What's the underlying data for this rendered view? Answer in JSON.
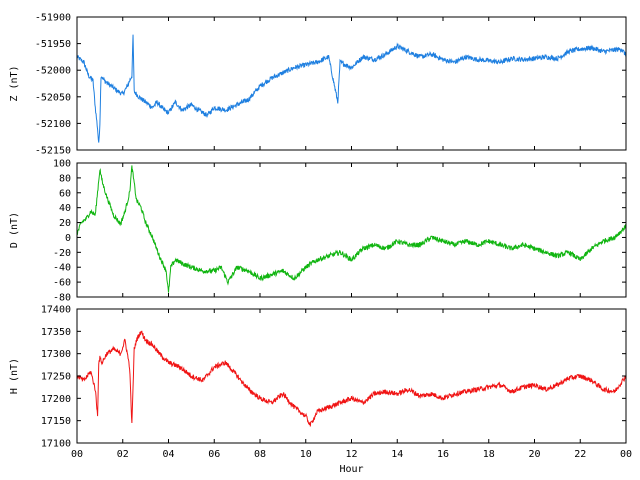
{
  "chart_data": {
    "type": "line",
    "xlabel": "Hour",
    "x_tick_labels": [
      "00",
      "02",
      "04",
      "06",
      "08",
      "10",
      "12",
      "14",
      "16",
      "18",
      "20",
      "22",
      "00"
    ],
    "xlim": [
      0,
      24
    ],
    "grid": false,
    "legend": "none",
    "panels": [
      {
        "ylabel": "Z (nT)",
        "color": "#1e7fe0",
        "ylim": [
          -52150,
          -51900
        ],
        "y_ticks": [
          -51900,
          -51950,
          -52000,
          -52050,
          -52100,
          -52150
        ],
        "series": [
          {
            "x": [
              0,
              0.3,
              0.5,
              0.7,
              0.8,
              0.9,
              0.95,
              1.0,
              1.05,
              1.2,
              1.5,
              1.8,
              2.0,
              2.2,
              2.4,
              2.45,
              2.5,
              2.7,
              3.0,
              3.3,
              3.5,
              3.8,
              4.0,
              4.3,
              4.6,
              5.0,
              5.3,
              5.7,
              6.0,
              6.5,
              7.0,
              7.5,
              8.0,
              8.5,
              9.0,
              9.5,
              10.0,
              10.5,
              11.0,
              11.4,
              11.5,
              12.0,
              12.5,
              13.0,
              13.5,
              14.0,
              14.5,
              15.0,
              15.5,
              16.0,
              16.5,
              17.0,
              17.5,
              18.0,
              18.5,
              19.0,
              19.5,
              20.0,
              20.5,
              21.0,
              21.5,
              22.0,
              22.5,
              23.0,
              23.5,
              23.8,
              24.0
            ],
            "y": [
              -51975,
              -51985,
              -52010,
              -52020,
              -52070,
              -52110,
              -52140,
              -52100,
              -52010,
              -52020,
              -52030,
              -52040,
              -52045,
              -52030,
              -52010,
              -51935,
              -52040,
              -52050,
              -52060,
              -52070,
              -52060,
              -52075,
              -52080,
              -52060,
              -52075,
              -52065,
              -52075,
              -52085,
              -52070,
              -52075,
              -52065,
              -52055,
              -52030,
              -52015,
              -52005,
              -51995,
              -51990,
              -51985,
              -51975,
              -52060,
              -51985,
              -51995,
              -51975,
              -51980,
              -51970,
              -51955,
              -51965,
              -51975,
              -51970,
              -51980,
              -51985,
              -51975,
              -51980,
              -51982,
              -51985,
              -51978,
              -51980,
              -51978,
              -51975,
              -51978,
              -51965,
              -51960,
              -51958,
              -51965,
              -51962,
              -51960,
              -51972
            ]
          }
        ]
      },
      {
        "ylabel": "D (nT)",
        "color": "#11b511",
        "ylim": [
          -80,
          100
        ],
        "y_ticks": [
          100,
          80,
          60,
          40,
          20,
          0,
          -20,
          -40,
          -60,
          -80
        ],
        "series": [
          {
            "x": [
              0,
              0.2,
              0.4,
              0.6,
              0.8,
              1.0,
              1.1,
              1.3,
              1.6,
              1.9,
              2.1,
              2.3,
              2.4,
              2.6,
              2.8,
              3.0,
              3.3,
              3.6,
              3.9,
              4.0,
              4.1,
              4.3,
              4.6,
              5.0,
              5.5,
              6.0,
              6.3,
              6.6,
              7.0,
              7.5,
              8.0,
              8.5,
              9.0,
              9.5,
              10.0,
              10.5,
              11.0,
              11.5,
              12.0,
              12.5,
              13.0,
              13.5,
              14.0,
              14.5,
              15.0,
              15.5,
              16.0,
              16.5,
              17.0,
              17.5,
              18.0,
              18.5,
              19.0,
              19.5,
              20.0,
              20.5,
              21.0,
              21.5,
              22.0,
              22.5,
              23.0,
              23.5,
              24.0
            ],
            "y": [
              5,
              20,
              25,
              35,
              30,
              92,
              75,
              55,
              30,
              18,
              35,
              60,
              95,
              50,
              40,
              20,
              0,
              -25,
              -45,
              -75,
              -40,
              -30,
              -35,
              -40,
              -45,
              -45,
              -40,
              -60,
              -40,
              -45,
              -55,
              -50,
              -45,
              -55,
              -40,
              -30,
              -25,
              -20,
              -30,
              -15,
              -10,
              -15,
              -5,
              -10,
              -10,
              0,
              -5,
              -10,
              -5,
              -10,
              -5,
              -10,
              -15,
              -10,
              -15,
              -20,
              -25,
              -20,
              -30,
              -15,
              -5,
              0,
              15
            ]
          }
        ]
      },
      {
        "ylabel": "H (nT)",
        "color": "#f01414",
        "ylim": [
          17100,
          17400
        ],
        "y_ticks": [
          17400,
          17350,
          17300,
          17250,
          17200,
          17150,
          17100
        ],
        "series": [
          {
            "x": [
              0,
              0.3,
              0.6,
              0.8,
              0.9,
              0.95,
              1.0,
              1.1,
              1.3,
              1.6,
              1.9,
              2.1,
              2.3,
              2.4,
              2.5,
              2.6,
              2.8,
              3.0,
              3.3,
              3.6,
              4.0,
              4.5,
              5.0,
              5.5,
              6.0,
              6.5,
              7.0,
              7.5,
              8.0,
              8.5,
              9.0,
              9.5,
              10.0,
              10.2,
              10.5,
              11.0,
              11.5,
              12.0,
              12.5,
              13.0,
              13.5,
              14.0,
              14.5,
              15.0,
              15.5,
              16.0,
              16.5,
              17.0,
              17.5,
              18.0,
              18.5,
              19.0,
              19.5,
              20.0,
              20.5,
              21.0,
              21.5,
              22.0,
              22.5,
              23.0,
              23.5,
              24.0
            ],
            "y": [
              17250,
              17240,
              17260,
              17220,
              17160,
              17280,
              17290,
              17280,
              17300,
              17310,
              17300,
              17330,
              17270,
              17140,
              17310,
              17330,
              17350,
              17330,
              17320,
              17300,
              17280,
              17270,
              17250,
              17240,
              17270,
              17280,
              17250,
              17220,
              17200,
              17190,
              17210,
              17180,
              17160,
              17140,
              17170,
              17180,
              17190,
              17200,
              17190,
              17210,
              17215,
              17210,
              17220,
              17205,
              17210,
              17200,
              17210,
              17215,
              17220,
              17225,
              17230,
              17215,
              17225,
              17230,
              17220,
              17230,
              17245,
              17250,
              17240,
              17220,
              17215,
              17250
            ]
          }
        ]
      }
    ]
  }
}
